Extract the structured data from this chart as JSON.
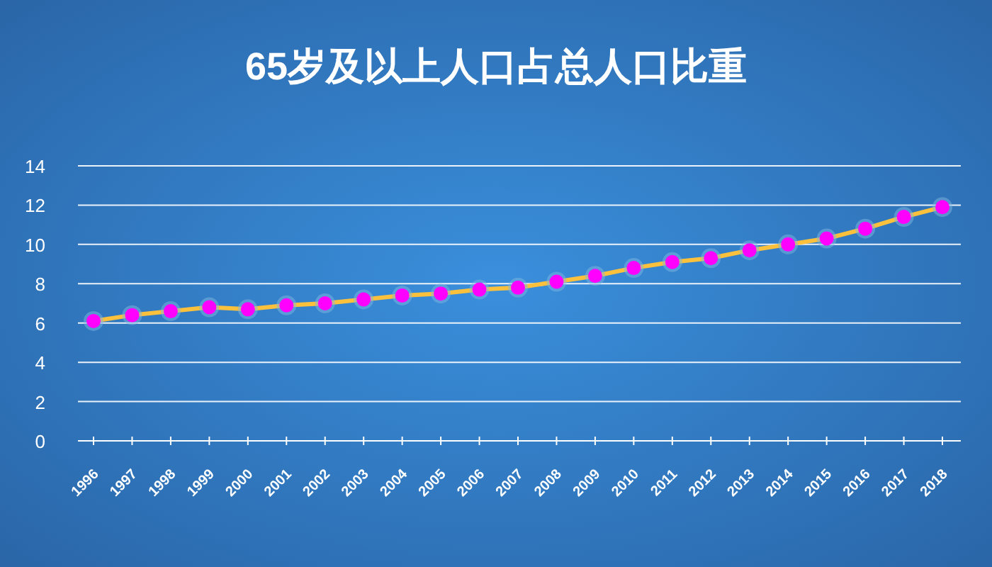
{
  "chart_data": {
    "type": "line",
    "title": "65岁及以上人口占总人口比重",
    "categories": [
      "1996",
      "1997",
      "1998",
      "1999",
      "2000",
      "2001",
      "2002",
      "2003",
      "2004",
      "2005",
      "2006",
      "2007",
      "2008",
      "2009",
      "2010",
      "2011",
      "2012",
      "2013",
      "2014",
      "2015",
      "2016",
      "2017",
      "2018"
    ],
    "series": [
      {
        "color": "#fbc13d",
        "values": [
          6.1,
          6.4,
          6.6,
          6.8,
          6.7,
          6.9,
          7.0,
          7.2,
          7.4,
          7.5,
          7.7,
          7.8,
          8.1,
          8.4,
          8.8,
          9.1,
          9.3,
          9.7,
          10.0,
          10.3,
          10.8,
          11.4,
          11.9
        ]
      }
    ],
    "ylim": [
      0,
      14
    ],
    "yticks": [
      0,
      2,
      4,
      6,
      8,
      10,
      12,
      14
    ],
    "grid": "y",
    "marker": "circle",
    "line_style": "solid"
  }
}
